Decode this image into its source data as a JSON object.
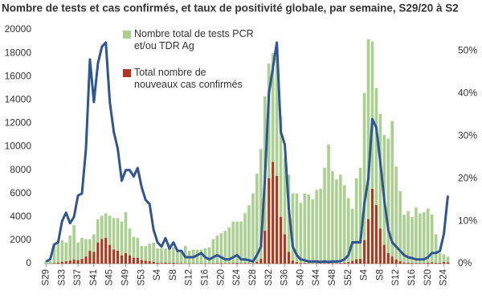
{
  "chart_data": {
    "type": "bar-line",
    "title": "Nombre de tests et cas confirmés, et taux de positivité globale, par semaine, S29/20 à S2",
    "categories": [
      "S29",
      null,
      null,
      null,
      "S33",
      null,
      null,
      null,
      "S37",
      null,
      null,
      null,
      "S41",
      null,
      null,
      null,
      "S45",
      null,
      null,
      null,
      "S49",
      null,
      null,
      null,
      "S53",
      null,
      null,
      null,
      "S4",
      null,
      null,
      null,
      "S8",
      null,
      null,
      null,
      "S12",
      null,
      null,
      null,
      "S16",
      null,
      null,
      null,
      "S20",
      null,
      null,
      null,
      "S24",
      null,
      null,
      null,
      "S28",
      null,
      null,
      null,
      "S32",
      null,
      null,
      null,
      "S36",
      null,
      null,
      null,
      "S40",
      null,
      null,
      null,
      "S44",
      null,
      null,
      null,
      "S48",
      null,
      null,
      null,
      "S52",
      null,
      null,
      null,
      "S4",
      null,
      null,
      null,
      "S8",
      null,
      null,
      null,
      "S12",
      null,
      null,
      null,
      "S16",
      null,
      null,
      null,
      "S20",
      null,
      null,
      null,
      "S24",
      null
    ],
    "series": [
      {
        "name": "Nombre total de tests PCR  et/ou TDR Ag",
        "color": "#a9d08e",
        "kind": "bar",
        "values": [
          300,
          200,
          1700,
          1800,
          2000,
          1800,
          2400,
          3300,
          1800,
          2200,
          2100,
          2100,
          2500,
          3800,
          4100,
          4300,
          4100,
          3900,
          3900,
          3600,
          4400,
          3000,
          2300,
          2200,
          1500,
          1500,
          1700,
          1800,
          1300,
          1300,
          1300,
          1700,
          1400,
          1100,
          1200,
          1500,
          1100,
          1200,
          1200,
          1200,
          1300,
          1400,
          2100,
          2400,
          2600,
          2800,
          3100,
          3600,
          3600,
          3600,
          4300,
          5000,
          6000,
          7700,
          9800,
          14300,
          17100,
          18000,
          17600,
          12600,
          9000,
          7600,
          6000,
          6000,
          5200,
          6000,
          5900,
          5500,
          6300,
          6400,
          8200,
          10200,
          7900,
          7200,
          7600,
          6700,
          5600,
          4700,
          7300,
          8200,
          14600,
          19200,
          19000,
          15000,
          12800,
          11000,
          10700,
          12200,
          8300,
          6200,
          4200,
          4500,
          4000,
          4800,
          4300,
          4400,
          4700,
          4200,
          2500,
          900,
          800,
          600
        ]
      },
      {
        "name": "Total nombre de nouveaux cas confirmés",
        "color": "#b8321f",
        "kind": "bar",
        "values": [
          0,
          10,
          50,
          80,
          150,
          200,
          250,
          350,
          300,
          400,
          600,
          1100,
          1000,
          1800,
          2100,
          2200,
          1600,
          1200,
          1100,
          700,
          900,
          700,
          500,
          500,
          300,
          250,
          200,
          150,
          70,
          50,
          80,
          60,
          70,
          40,
          40,
          20,
          20,
          20,
          20,
          30,
          20,
          15,
          30,
          40,
          40,
          30,
          30,
          50,
          70,
          40,
          50,
          40,
          30,
          150,
          400,
          2800,
          7300,
          8700,
          7500,
          4000,
          2500,
          1000,
          250,
          120,
          50,
          50,
          30,
          30,
          30,
          25,
          40,
          40,
          40,
          40,
          50,
          70,
          120,
          230,
          370,
          400,
          2000,
          3800,
          6400,
          5000,
          3000,
          1600,
          900,
          600,
          350,
          200,
          80,
          70,
          50,
          50,
          40,
          40,
          70,
          100,
          60,
          60,
          120,
          100
        ]
      },
      {
        "name": "Taux de positivité",
        "color": "#2f5597",
        "kind": "line",
        "axis": "y2",
        "values": [
          0.5,
          1,
          4.5,
          5,
          10,
          12,
          9.5,
          11,
          16,
          16.5,
          27,
          48,
          38,
          47,
          51,
          52,
          38,
          31,
          27,
          19.5,
          22,
          22,
          20.5,
          22.5,
          18,
          15,
          14,
          8,
          5,
          4,
          6,
          3.5,
          5,
          3,
          3,
          1.5,
          1.5,
          1.5,
          2,
          2.5,
          1.5,
          1,
          1.5,
          2,
          1.5,
          1,
          1,
          1.5,
          2,
          1,
          1,
          0.8,
          0.5,
          2,
          4,
          20,
          40,
          46,
          52,
          31,
          28,
          13,
          4,
          2,
          1,
          0.8,
          0.5,
          0.5,
          0.5,
          0.4,
          0.5,
          0.4,
          0.5,
          0.5,
          0.6,
          1,
          2,
          5,
          5,
          5,
          14,
          20,
          34,
          32,
          24,
          15,
          8,
          5,
          4,
          3,
          2,
          1.5,
          1.3,
          1,
          1,
          1,
          1.5,
          2.5,
          2.5,
          3,
          7,
          16
        ]
      }
    ],
    "ylim": [
      0,
      20000
    ],
    "yticks": [
      0,
      2000,
      4000,
      6000,
      8000,
      10000,
      12000,
      14000,
      16000,
      18000,
      20000
    ],
    "y2lim": [
      0,
      55
    ],
    "y2ticks": [
      {
        "value": 0,
        "label": "0%"
      },
      {
        "value": 10,
        "label": "10%"
      },
      {
        "value": 20,
        "label": "20%"
      },
      {
        "value": 30,
        "label": "30%"
      },
      {
        "value": 40,
        "label": "40%"
      },
      {
        "value": 50,
        "label": "50%"
      }
    ],
    "legend": "upper left",
    "grid": false
  }
}
